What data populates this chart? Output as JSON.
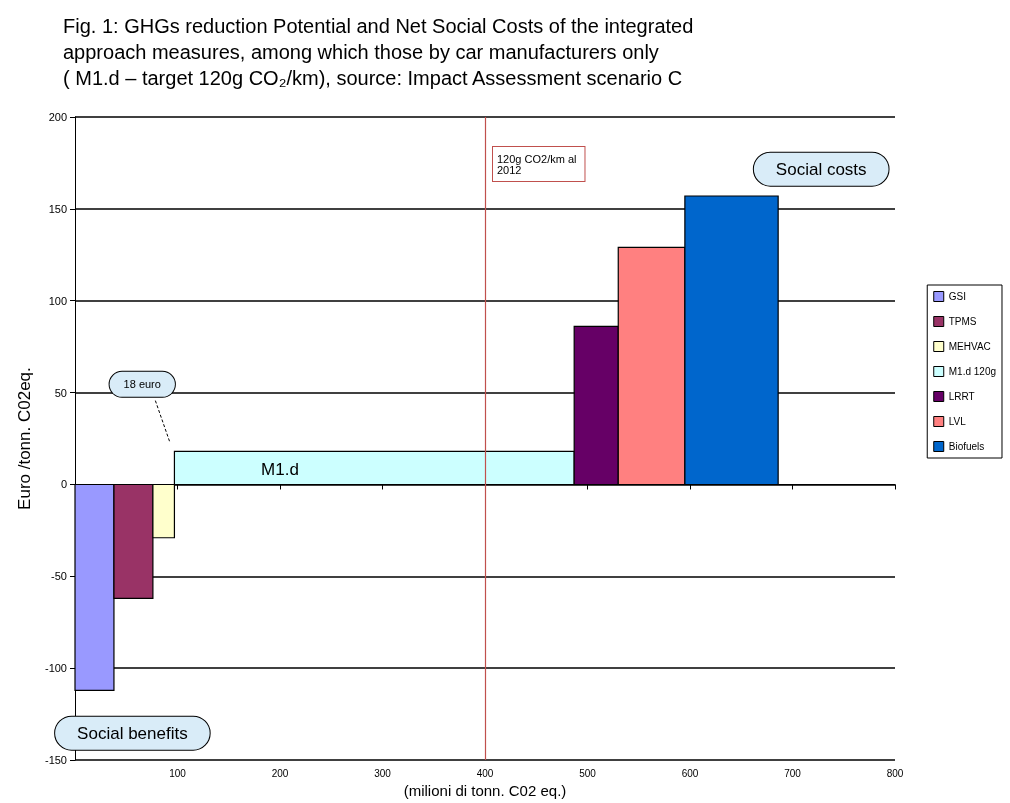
{
  "chart_data": {
    "type": "histogram",
    "title": "Fig. 1: GHGs reduction Potential and Net Social Costs of the integrated\napproach measures, among which those by car manufacturers only\n( M1.d – target 120g CO₂/km), source: Impact Assessment scenario C",
    "xlabel": "(milioni di tonn. C02 eq.)",
    "ylabel": "Euro /tonn. C02eq.",
    "bins": [
      0,
      38,
      76,
      97,
      487,
      530,
      595,
      686
    ],
    "series": [
      {
        "name": "GSI",
        "color": "#9999ff",
        "values": [
          -112,
          null,
          null,
          null,
          null,
          null,
          null
        ]
      },
      {
        "name": "TPMS",
        "color": "#993366",
        "values": [
          null,
          -62,
          null,
          null,
          null,
          null,
          null
        ]
      },
      {
        "name": "MEHVAC",
        "color": "#ffffcc",
        "values": [
          null,
          null,
          -29,
          null,
          null,
          null,
          null
        ]
      },
      {
        "name": "M1.d 120g",
        "color": "#ccffff",
        "values": [
          null,
          null,
          null,
          18,
          null,
          null,
          null
        ]
      },
      {
        "name": "LRRT",
        "color": "#660066",
        "values": [
          null,
          null,
          null,
          null,
          86,
          null,
          null
        ]
      },
      {
        "name": "LVL",
        "color": "#ff8080",
        "values": [
          null,
          null,
          null,
          null,
          null,
          129,
          null
        ]
      },
      {
        "name": "Biofuels",
        "color": "#0066cc",
        "values": [
          null,
          null,
          null,
          null,
          null,
          null,
          157
        ]
      }
    ],
    "xlim": [
      0,
      800
    ],
    "xticks": [
      100,
      200,
      300,
      400,
      500,
      600,
      700,
      800
    ],
    "ylim": [
      -150,
      200
    ],
    "yticks": [
      -150,
      -100,
      -50,
      0,
      50,
      100,
      150,
      200
    ],
    "grid": "y",
    "legend": "right",
    "ref_lines": [
      {
        "axis": "x",
        "value": 400,
        "label": "120g CO2/km al\n2012",
        "color": "#c0504d"
      }
    ],
    "annotations": [
      "18 euro",
      "M1.d",
      "Social costs",
      "Social benefits"
    ]
  }
}
